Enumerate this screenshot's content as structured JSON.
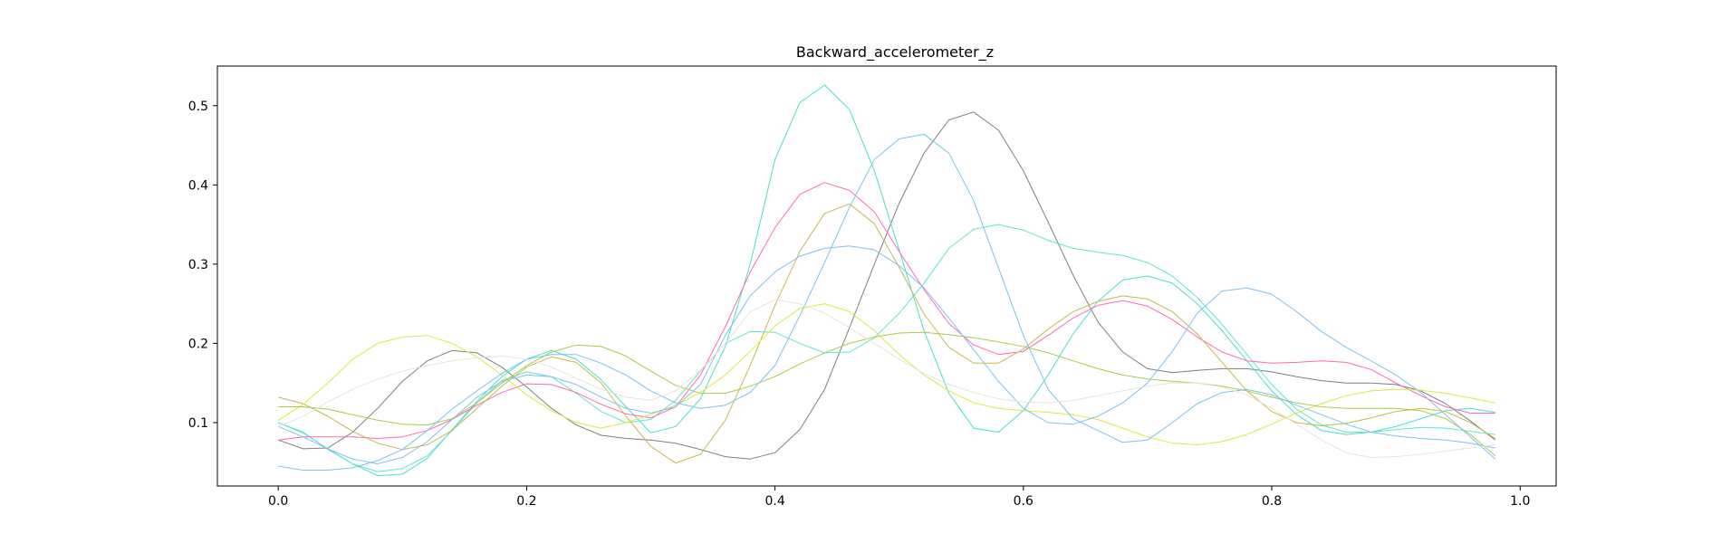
{
  "chart_data": {
    "type": "line",
    "title": "Backward_accelerometer_z",
    "xlabel": "",
    "ylabel": "",
    "xlim": [
      -0.049,
      1.029
    ],
    "ylim": [
      0.02,
      0.55
    ],
    "xticks": [
      0.0,
      0.2,
      0.4,
      0.6,
      0.8,
      1.0
    ],
    "xtick_labels": [
      "0.0",
      "0.2",
      "0.4",
      "0.6",
      "0.8",
      "1.0"
    ],
    "yticks": [
      0.1,
      0.2,
      0.3,
      0.4,
      0.5
    ],
    "ytick_labels": [
      "0.1",
      "0.2",
      "0.3",
      "0.4",
      "0.5"
    ],
    "grid": false,
    "legend": false,
    "x": [
      0.0,
      0.02,
      0.04,
      0.06,
      0.08,
      0.1,
      0.12,
      0.14,
      0.16,
      0.18,
      0.2,
      0.22,
      0.24,
      0.26,
      0.28,
      0.3,
      0.32,
      0.34,
      0.36,
      0.38,
      0.4,
      0.42,
      0.44,
      0.46,
      0.48,
      0.5,
      0.52,
      0.54,
      0.56,
      0.58,
      0.6,
      0.62,
      0.64,
      0.66,
      0.68,
      0.7,
      0.72,
      0.74,
      0.76,
      0.78,
      0.8,
      0.82,
      0.84,
      0.86,
      0.88,
      0.9,
      0.92,
      0.94,
      0.96,
      0.98
    ],
    "series": [
      {
        "color": "#7f7f7f",
        "values": [
          0.078,
          0.067,
          0.068,
          0.088,
          0.118,
          0.152,
          0.178,
          0.191,
          0.188,
          0.17,
          0.145,
          0.118,
          0.097,
          0.084,
          0.08,
          0.078,
          0.074,
          0.066,
          0.057,
          0.054,
          0.062,
          0.091,
          0.142,
          0.22,
          0.3,
          0.377,
          0.44,
          0.482,
          0.492,
          0.469,
          0.418,
          0.353,
          0.286,
          0.227,
          0.189,
          0.168,
          0.163,
          0.166,
          0.168,
          0.168,
          0.164,
          0.158,
          0.153,
          0.15,
          0.15,
          0.148,
          0.14,
          0.124,
          0.102,
          0.078
        ]
      },
      {
        "color": "#48e0c8",
        "values": [
          0.1,
          0.087,
          0.067,
          0.048,
          0.033,
          0.035,
          0.055,
          0.091,
          0.127,
          0.158,
          0.18,
          0.191,
          0.18,
          0.154,
          0.12,
          0.087,
          0.095,
          0.13,
          0.196,
          0.3,
          0.432,
          0.504,
          0.526,
          0.495,
          0.418,
          0.318,
          0.216,
          0.137,
          0.093,
          0.088,
          0.115,
          0.16,
          0.212,
          0.253,
          0.28,
          0.285,
          0.276,
          0.25,
          0.216,
          0.178,
          0.14,
          0.11,
          0.09,
          0.085,
          0.088,
          0.095,
          0.105,
          0.115,
          0.118,
          0.113
        ]
      },
      {
        "color": "#5ee6d0",
        "values": [
          0.1,
          0.088,
          0.066,
          0.048,
          0.038,
          0.042,
          0.058,
          0.09,
          0.125,
          0.153,
          0.164,
          0.158,
          0.137,
          0.114,
          0.1,
          0.104,
          0.128,
          0.165,
          0.2,
          0.215,
          0.214,
          0.2,
          0.188,
          0.189,
          0.207,
          0.238,
          0.276,
          0.32,
          0.344,
          0.35,
          0.343,
          0.33,
          0.32,
          0.315,
          0.311,
          0.302,
          0.285,
          0.258,
          0.224,
          0.186,
          0.148,
          0.117,
          0.097,
          0.088,
          0.088,
          0.091,
          0.094,
          0.093,
          0.089,
          0.085
        ]
      },
      {
        "color": "#ff69b4",
        "values": [
          0.078,
          0.082,
          0.082,
          0.082,
          0.08,
          0.082,
          0.09,
          0.104,
          0.122,
          0.138,
          0.149,
          0.148,
          0.138,
          0.123,
          0.111,
          0.106,
          0.12,
          0.16,
          0.221,
          0.29,
          0.346,
          0.388,
          0.403,
          0.393,
          0.366,
          0.316,
          0.268,
          0.225,
          0.198,
          0.186,
          0.19,
          0.21,
          0.232,
          0.248,
          0.254,
          0.247,
          0.23,
          0.208,
          0.189,
          0.178,
          0.175,
          0.176,
          0.178,
          0.176,
          0.167,
          0.15,
          0.134,
          0.12,
          0.112,
          0.112
        ]
      },
      {
        "color": "#c8b84a",
        "values": [
          0.132,
          0.124,
          0.108,
          0.089,
          0.074,
          0.066,
          0.072,
          0.09,
          0.118,
          0.146,
          0.17,
          0.183,
          0.176,
          0.15,
          0.108,
          0.07,
          0.049,
          0.06,
          0.103,
          0.172,
          0.248,
          0.316,
          0.364,
          0.376,
          0.351,
          0.296,
          0.237,
          0.195,
          0.175,
          0.175,
          0.193,
          0.218,
          0.24,
          0.253,
          0.26,
          0.256,
          0.24,
          0.212,
          0.176,
          0.14,
          0.114,
          0.1,
          0.096,
          0.099,
          0.106,
          0.114,
          0.118,
          0.114,
          0.1,
          0.08
        ]
      },
      {
        "color": "#dde840",
        "values": [
          0.103,
          0.123,
          0.15,
          0.18,
          0.2,
          0.208,
          0.21,
          0.2,
          0.183,
          0.16,
          0.135,
          0.115,
          0.1,
          0.093,
          0.1,
          0.11,
          0.122,
          0.138,
          0.16,
          0.19,
          0.222,
          0.244,
          0.25,
          0.24,
          0.216,
          0.186,
          0.16,
          0.14,
          0.125,
          0.118,
          0.115,
          0.113,
          0.11,
          0.104,
          0.093,
          0.082,
          0.074,
          0.072,
          0.076,
          0.085,
          0.098,
          0.112,
          0.124,
          0.134,
          0.14,
          0.142,
          0.141,
          0.137,
          0.131,
          0.125
        ]
      },
      {
        "color": "#a8cc48",
        "values": [
          0.12,
          0.12,
          0.117,
          0.11,
          0.103,
          0.098,
          0.097,
          0.105,
          0.125,
          0.15,
          0.172,
          0.189,
          0.198,
          0.196,
          0.184,
          0.165,
          0.147,
          0.137,
          0.137,
          0.146,
          0.158,
          0.174,
          0.188,
          0.2,
          0.208,
          0.213,
          0.214,
          0.211,
          0.207,
          0.202,
          0.196,
          0.188,
          0.178,
          0.168,
          0.16,
          0.155,
          0.152,
          0.15,
          0.146,
          0.14,
          0.132,
          0.125,
          0.12,
          0.118,
          0.118,
          0.118,
          0.115,
          0.105,
          0.085,
          0.058
        ]
      },
      {
        "color": "#82c0f0",
        "values": [
          0.095,
          0.082,
          0.067,
          0.054,
          0.048,
          0.056,
          0.076,
          0.104,
          0.132,
          0.152,
          0.16,
          0.158,
          0.148,
          0.132,
          0.118,
          0.112,
          0.12,
          0.148,
          0.21,
          0.26,
          0.29,
          0.31,
          0.32,
          0.323,
          0.318,
          0.298,
          0.27,
          0.232,
          0.192,
          0.152,
          0.118,
          0.1,
          0.098,
          0.108,
          0.125,
          0.15,
          0.19,
          0.238,
          0.266,
          0.27,
          0.262,
          0.24,
          0.215,
          0.195,
          0.178,
          0.16,
          0.138,
          0.11,
          0.082,
          0.054
        ]
      },
      {
        "color": "#78c4ee",
        "values": [
          0.045,
          0.04,
          0.04,
          0.043,
          0.052,
          0.066,
          0.09,
          0.117,
          0.14,
          0.162,
          0.18,
          0.186,
          0.186,
          0.175,
          0.16,
          0.14,
          0.125,
          0.118,
          0.122,
          0.138,
          0.172,
          0.235,
          0.302,
          0.372,
          0.432,
          0.458,
          0.464,
          0.44,
          0.38,
          0.295,
          0.21,
          0.142,
          0.105,
          0.09,
          0.075,
          0.078,
          0.1,
          0.124,
          0.138,
          0.142,
          0.135,
          0.122,
          0.11,
          0.098,
          0.088,
          0.083,
          0.08,
          0.078,
          0.074,
          0.068
        ]
      },
      {
        "color": "#e8e4d8",
        "values": [
          0.095,
          0.108,
          0.126,
          0.142,
          0.155,
          0.165,
          0.172,
          0.178,
          0.182,
          0.184,
          0.18,
          0.17,
          0.156,
          0.142,
          0.132,
          0.128,
          0.14,
          0.166,
          0.2,
          0.24,
          0.255,
          0.25,
          0.238,
          0.22,
          0.2,
          0.18,
          0.162,
          0.148,
          0.138,
          0.13,
          0.126,
          0.125,
          0.128,
          0.134,
          0.14,
          0.146,
          0.15,
          0.15,
          0.145,
          0.135,
          0.118,
          0.098,
          0.078,
          0.062,
          0.056,
          0.057,
          0.06,
          0.064,
          0.068,
          0.072
        ]
      }
    ]
  }
}
